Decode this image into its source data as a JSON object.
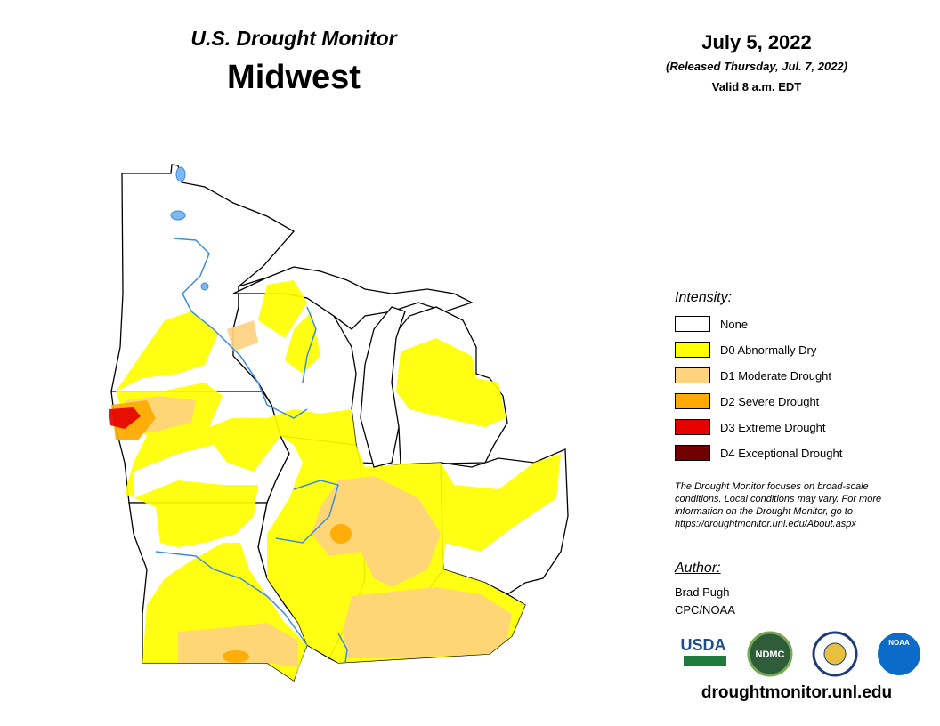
{
  "header": {
    "title": "U.S. Drought Monitor",
    "region": "Midwest"
  },
  "date": {
    "date": "July 5, 2022",
    "released": "(Released Thursday, Jul. 7, 2022)",
    "valid": "Valid 8 a.m. EDT"
  },
  "legend": {
    "title": "Intensity:",
    "items": [
      {
        "label": "None",
        "color": "#ffffff"
      },
      {
        "label": "D0 Abnormally Dry",
        "color": "#ffff00"
      },
      {
        "label": "D1 Moderate Drought",
        "color": "#ffd37f"
      },
      {
        "label": "D2 Severe Drought",
        "color": "#ffaa00"
      },
      {
        "label": "D3 Extreme Drought",
        "color": "#e60000"
      },
      {
        "label": "D4 Exceptional Drought",
        "color": "#730000"
      }
    ]
  },
  "note": [
    "The Drought Monitor focuses on broad-scale",
    "conditions. Local conditions may vary. For more",
    "information on the Drought Monitor, go to",
    "https://droughtmonitor.unl.edu/About.aspx"
  ],
  "author": {
    "title": "Author:",
    "lines": [
      "Brad Pugh",
      "CPC/NOAA"
    ]
  },
  "logos": [
    "USDA",
    "NDMC",
    "NOAA"
  ],
  "url": "droughtmonitor.unl.edu"
}
